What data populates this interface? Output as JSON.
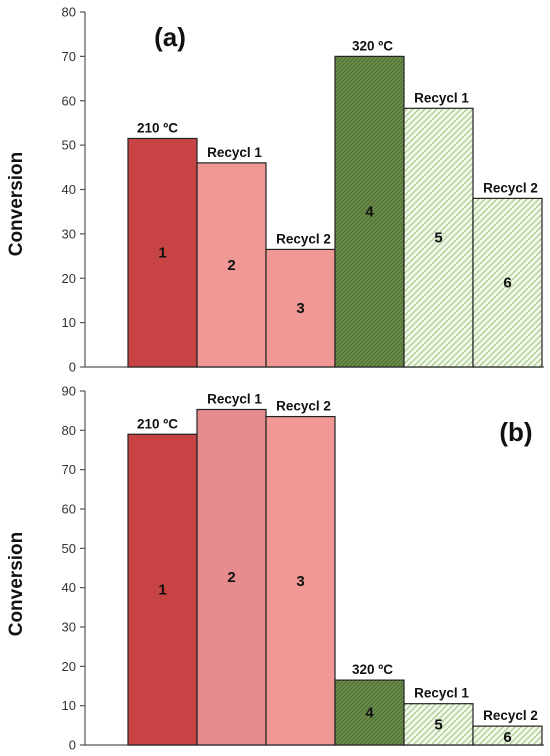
{
  "chart_data": [
    {
      "type": "bar",
      "panel_label": "(a)",
      "ylabel": "Conversion",
      "xlabel": "",
      "ylim": [
        0,
        80
      ],
      "yticks": [
        "0",
        "10",
        "20",
        "30",
        "40",
        "50",
        "60",
        "70",
        "80"
      ],
      "bars": [
        {
          "id": "1",
          "value": 51.5,
          "top_label": "210 ºC",
          "color": "#C84444",
          "pattern": "solid"
        },
        {
          "id": "2",
          "value": 46,
          "top_label": "Recycl 1",
          "color": "#EF9896",
          "pattern": "solid"
        },
        {
          "id": "3",
          "value": 26.5,
          "top_label": "Recycl 2",
          "color": "#EF9896",
          "pattern": "solid"
        },
        {
          "id": "4",
          "value": 70,
          "top_label": "320 ºC",
          "color": "#6A8C4B",
          "pattern": "dense-hatch"
        },
        {
          "id": "5",
          "value": 58.3,
          "top_label": "Recycl 1",
          "color": "#C5DDAF",
          "pattern": "light-hatch"
        },
        {
          "id": "6",
          "value": 38,
          "top_label": "Recycl 2",
          "color": "#C5DDAF",
          "pattern": "light-hatch"
        }
      ]
    },
    {
      "type": "bar",
      "panel_label": "(b)",
      "ylabel": "Conversion",
      "xlabel": "",
      "ylim": [
        0,
        90
      ],
      "yticks": [
        "0",
        "10",
        "20",
        "30",
        "40",
        "50",
        "60",
        "70",
        "80",
        "90"
      ],
      "bars": [
        {
          "id": "1",
          "value": 79,
          "top_label": "210 ºC",
          "color": "#C84444",
          "pattern": "solid"
        },
        {
          "id": "2",
          "value": 85.3,
          "top_label": "Recycl 1",
          "color": "#E68C8E",
          "pattern": "solid"
        },
        {
          "id": "3",
          "value": 83.5,
          "top_label": "Recycl 2",
          "color": "#EF9896",
          "pattern": "solid"
        },
        {
          "id": "4",
          "value": 16.5,
          "top_label": "320 ºC",
          "color": "#6A8C4B",
          "pattern": "dense-hatch"
        },
        {
          "id": "5",
          "value": 10.5,
          "top_label": "Recycl 1",
          "color": "#C5DDAF",
          "pattern": "light-hatch"
        },
        {
          "id": "6",
          "value": 4.8,
          "top_label": "Recycl 2",
          "color": "#C5DDAF",
          "pattern": "light-hatch"
        }
      ]
    }
  ]
}
